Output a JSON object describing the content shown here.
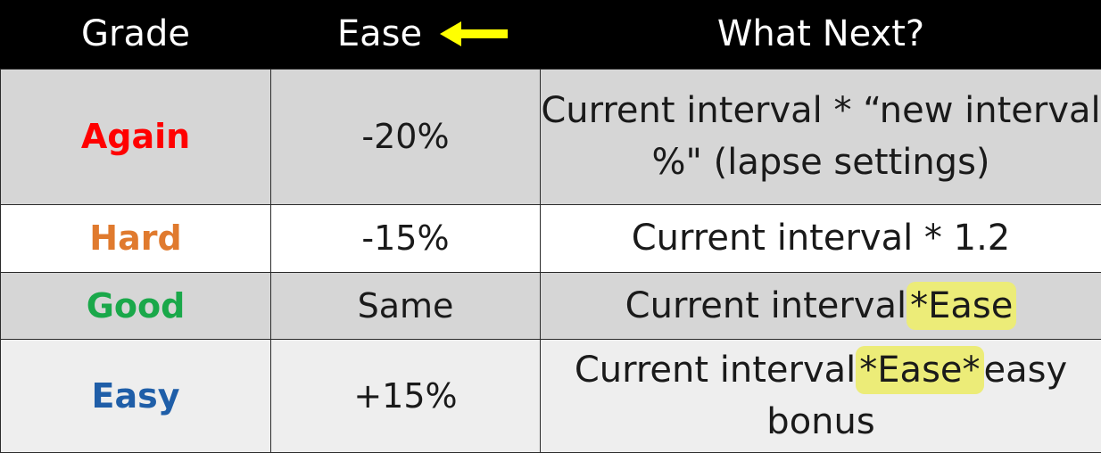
{
  "header": {
    "grade": "Grade",
    "ease": "Ease",
    "what_next": "What Next?",
    "arrow_color": "#ffff00"
  },
  "rows": [
    {
      "grade": "Again",
      "grade_color": "#ff0000",
      "ease": "-20%",
      "next_line1": "Current interval * “new interval",
      "next_line2": "%\" (lapse settings)"
    },
    {
      "grade": "Hard",
      "grade_color": "#e07a2e",
      "ease": "-15%",
      "next": "Current interval * 1.2"
    },
    {
      "grade": "Good",
      "grade_color": "#1aa84a",
      "ease": "Same",
      "next_prefix": "Current interval",
      "next_highlight": "*Ease"
    },
    {
      "grade": "Easy",
      "grade_color": "#1f5ea8",
      "ease": "+15%",
      "next_prefix": "Current interval",
      "next_highlight": "*Ease*",
      "next_suffix": "easy",
      "next_line2": "bonus"
    }
  ],
  "highlight_color": "#ecec78"
}
